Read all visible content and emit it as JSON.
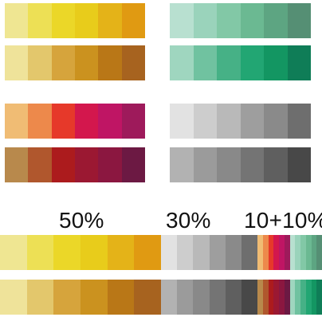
{
  "labels": {
    "a": "50%",
    "b": "30%",
    "c": "10+10%"
  },
  "palettes": {
    "yellow_light": [
      "#efe692",
      "#ede055",
      "#ebd728",
      "#e8cc1b",
      "#e4b318",
      "#e09a12"
    ],
    "yellow_dark": [
      "#efe39a",
      "#e3c76c",
      "#d6a43c",
      "#cb921f",
      "#b97717",
      "#a7631f"
    ],
    "green_light": [
      "#b8e0d0",
      "#9ad3bb",
      "#82c8a6",
      "#6bb992",
      "#5da582",
      "#558f74"
    ],
    "green_dark": [
      "#9fd6bf",
      "#70c2a0",
      "#46b186",
      "#22a673",
      "#139662",
      "#0f7d57"
    ],
    "red_light": [
      "#f0bc74",
      "#ed894b",
      "#e6392a",
      "#d3174d",
      "#bf1564",
      "#9e1a5b"
    ],
    "red_dark": [
      "#b8894c",
      "#b0572d",
      "#ac1b1d",
      "#9b1832",
      "#8b1740",
      "#6c1943"
    ],
    "gray_light": [
      "#e2e2e2",
      "#cdcdcd",
      "#b9b9b9",
      "#9e9e9e",
      "#8a8a8a",
      "#6e6e6e"
    ],
    "gray_dark": [
      "#b2b2b2",
      "#9b9b9b",
      "#898989",
      "#747474",
      "#5f5f5f",
      "#484848"
    ],
    "bottom_top": [
      "#efe692",
      "#ede055",
      "#ebd728",
      "#e8cc1b",
      "#e4b318",
      "#e09a12",
      "#e2e2e2",
      "#cdcdcd",
      "#b9b9b9",
      "#9e9e9e",
      "#8a8a8a",
      "#6e6e6e",
      "#f0bc74",
      "#ed894b",
      "#e6392a",
      "#d3174d",
      "#bf1564",
      "#9e1a5b",
      "#b8e0d0",
      "#9ad3bb",
      "#82c8a6",
      "#6bb992",
      "#5da582",
      "#558f74"
    ],
    "bottom_bottom": [
      "#efe39a",
      "#e3c76c",
      "#d6a43c",
      "#cb921f",
      "#b97717",
      "#a7631f",
      "#b2b2b2",
      "#9b9b9b",
      "#898989",
      "#747474",
      "#5f5f5f",
      "#484848",
      "#b8894c",
      "#b0572d",
      "#ac1b1d",
      "#9b1832",
      "#8b1740",
      "#6c1943",
      "#9fd6bf",
      "#70c2a0",
      "#46b186",
      "#22a673",
      "#139662",
      "#0f7d57"
    ]
  }
}
